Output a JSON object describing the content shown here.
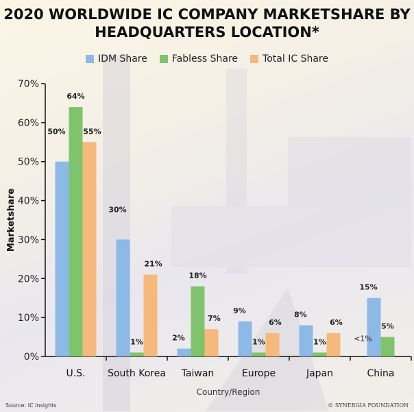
{
  "chart_data": {
    "type": "bar",
    "title": "2020 WORLDWIDE IC COMPANY MARKETSHARE BY HEADQUARTERS LOCATION*",
    "title_lines": [
      "2020 WORLDWIDE IC COMPANY MARKETSHARE BY",
      "HEADQUARTERS LOCATION*"
    ],
    "xlabel": "Country/Region",
    "ylabel": "Marketshare",
    "ylim": [
      0,
      70
    ],
    "yticks": [
      "0%",
      "10%",
      "20%",
      "30%",
      "40%",
      "50%",
      "60%",
      "70%"
    ],
    "categories": [
      "U.S.",
      "South Korea",
      "Taiwan",
      "Europe",
      "Japan",
      "China"
    ],
    "legend_position": "top",
    "grid": false,
    "series": [
      {
        "name": "IDM Share",
        "color": "#8cb9e6",
        "values": [
          50,
          30,
          2,
          9,
          8,
          15
        ],
        "labels": [
          "50%",
          "30%",
          "2%",
          "9%",
          "8%",
          "15%"
        ]
      },
      {
        "name": "Fabless Share",
        "color": "#7fc46c",
        "values": [
          64,
          1,
          18,
          1,
          1,
          5
        ],
        "labels": [
          "64%",
          "1%",
          "18%",
          "1%",
          "1%",
          "5%"
        ]
      },
      {
        "name": "Total IC Share",
        "color": "#f6b97c",
        "values": [
          55,
          21,
          7,
          6,
          6,
          null
        ],
        "labels": [
          "55%",
          "21%",
          "7%",
          "6%",
          "6%",
          ""
        ]
      }
    ],
    "annotations": [
      {
        "category": "China",
        "text": "<1%"
      }
    ]
  },
  "footer": {
    "source": "Source: IC Insights",
    "brand": "© SYNERGIA FOUNDATION"
  }
}
